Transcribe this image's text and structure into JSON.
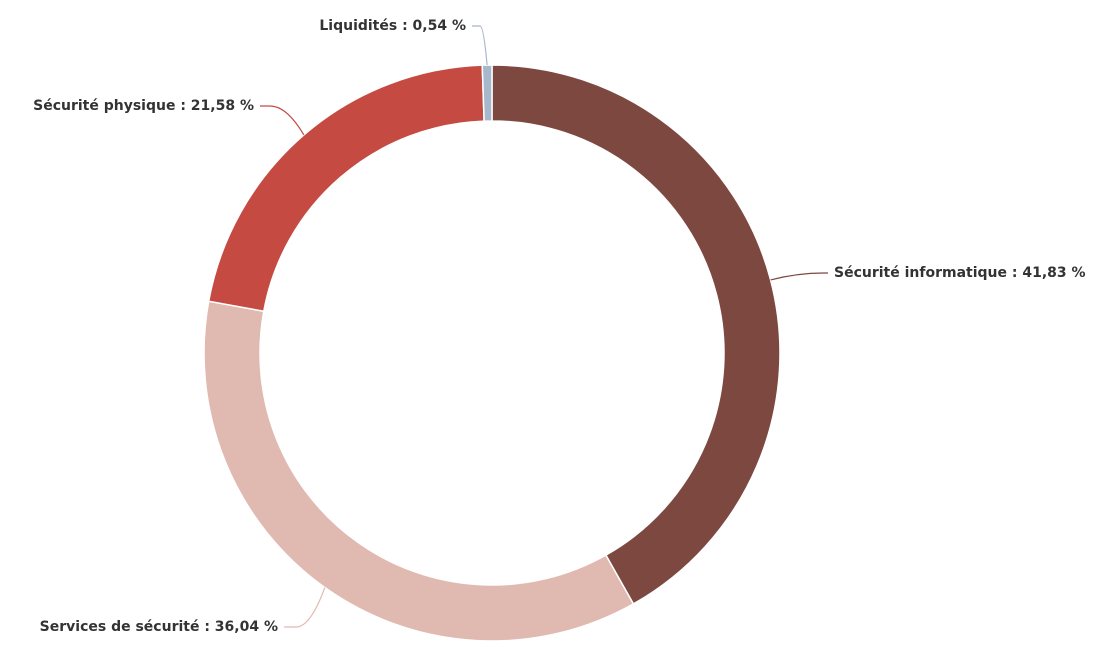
{
  "chart_data": {
    "type": "donut",
    "values": [
      41.83,
      36.04,
      21.58,
      0.54
    ],
    "value_labels": [
      "Sécurité informatique : 41,83 %",
      "Services de sécurité : 36,04 %",
      "Sécurité physique : 21,58 %",
      "Liquidités : 0,54 %"
    ],
    "colors": [
      "#7d4840",
      "#e0b9b0",
      "#c44a42",
      "#a8b8cc"
    ]
  }
}
